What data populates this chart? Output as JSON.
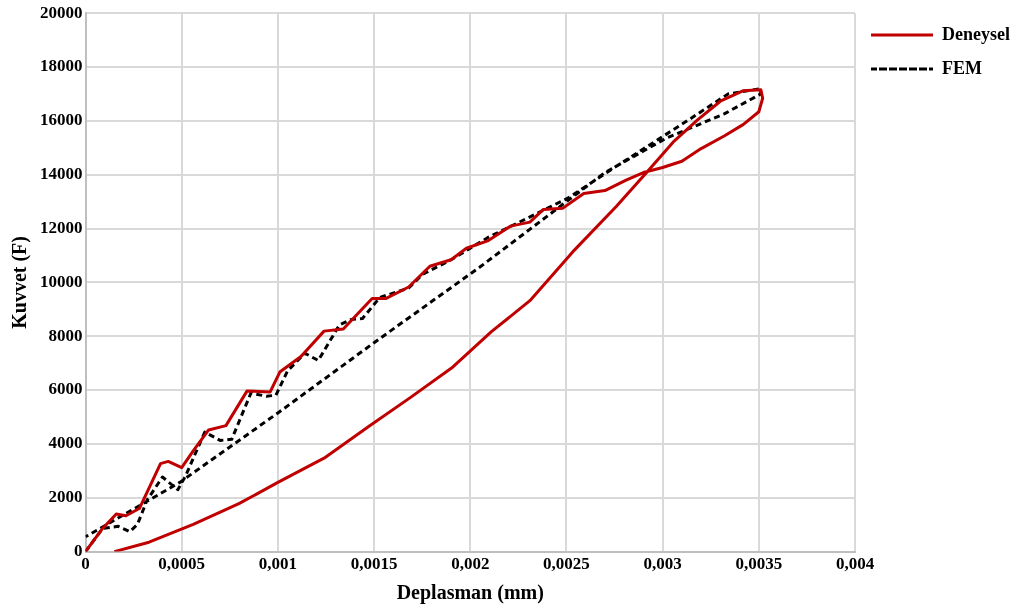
{
  "chart_data": {
    "type": "line",
    "xlabel": "Deplasman (mm)",
    "ylabel": "Kuvvet (F)",
    "xlim": [
      0,
      0.004
    ],
    "ylim": [
      0,
      20000
    ],
    "xticks": [
      0,
      {
        "value": 0.0005,
        "label": "0,0005"
      },
      {
        "value": 0.001,
        "label": "0,001"
      },
      {
        "value": 0.0015,
        "label": "0,0015"
      },
      {
        "value": 0.002,
        "label": "0,002"
      },
      {
        "value": 0.0025,
        "label": "0,0025"
      },
      {
        "value": 0.003,
        "label": "0,003"
      },
      {
        "value": 0.0035,
        "label": "0,0035"
      },
      {
        "value": 0.004,
        "label": "0,004"
      }
    ],
    "yticks": [
      0,
      2000,
      4000,
      6000,
      8000,
      10000,
      12000,
      14000,
      16000,
      18000,
      20000
    ],
    "grid": true,
    "legend": "top right",
    "marker": "none",
    "series": [
      {
        "name": "Deneysel",
        "color": "#c00000",
        "line_style": "solid",
        "x": [
          0,
          8.9e-05,
          0.00016,
          0.00021,
          0.00028,
          0.00039,
          0.00043,
          0.0005,
          0.00056,
          0.00064,
          0.00073,
          0.00084,
          0.00096,
          0.00101,
          0.00112,
          0.00124,
          0.00134,
          0.00149,
          0.00156,
          0.00168,
          0.00179,
          0.0019,
          0.00198,
          0.00209,
          0.00221,
          0.00231,
          0.00238,
          0.00248,
          0.00259,
          0.0027,
          0.00281,
          0.0029,
          0.003,
          0.0031,
          0.0032,
          0.00332,
          0.00342,
          0.0035,
          0.00352,
          0.00351,
          0.00342,
          0.0033,
          0.00318,
          0.00306,
          0.00292,
          0.00276,
          0.00254,
          0.00231,
          0.00211,
          0.00191,
          0.00169,
          0.00147,
          0.00124,
          0.001,
          0.0008,
          0.00056,
          0.00033,
          0.00015
        ],
        "values": [
          0,
          860,
          1400,
          1330,
          1600,
          3270,
          3350,
          3120,
          3740,
          4520,
          4680,
          5970,
          5930,
          6670,
          7250,
          8190,
          8270,
          9400,
          9400,
          9830,
          10600,
          10840,
          11270,
          11540,
          12090,
          12240,
          12710,
          12750,
          13300,
          13410,
          13800,
          14080,
          14270,
          14500,
          14970,
          15440,
          15870,
          16340,
          16840,
          17160,
          17120,
          16730,
          16030,
          15250,
          14110,
          12830,
          11190,
          9320,
          8170,
          6860,
          5730,
          4640,
          3470,
          2570,
          1790,
          1010,
          350,
          0
        ]
      },
      {
        "name": "FEM",
        "color": "#000000",
        "line_style": "dashed",
        "x": [
          0,
          8.9e-05,
          0.00017,
          0.00023,
          0.00027,
          0.00032,
          0.0004,
          0.00048,
          0.00052,
          0.00062,
          0.0007,
          0.00076,
          0.00086,
          0.00094,
          0.00099,
          0.00105,
          0.00114,
          0.00121,
          0.00132,
          0.00138,
          0.00144,
          0.00153,
          0.00168,
          0.00175,
          0.00191,
          0.00209,
          0.00229,
          0.00251,
          0.00275,
          0.00292,
          0.00314,
          0.00334,
          0.00351,
          0.00351,
          0.00332,
          0.00302,
          0.0027,
          0.00205,
          0.0015,
          0.001,
          0.00049,
          0
        ],
        "values": [
          0,
          860,
          940,
          740,
          1010,
          1910,
          2770,
          2300,
          2810,
          4440,
          4130,
          4170,
          5890,
          5770,
          5810,
          6710,
          7370,
          7100,
          8420,
          8620,
          8660,
          9440,
          9790,
          10290,
          10880,
          11660,
          12360,
          13140,
          14270,
          15050,
          16060,
          17000,
          17200,
          17000,
          16260,
          15360,
          14080,
          10570,
          7760,
          5150,
          2570,
          550
        ]
      }
    ]
  }
}
